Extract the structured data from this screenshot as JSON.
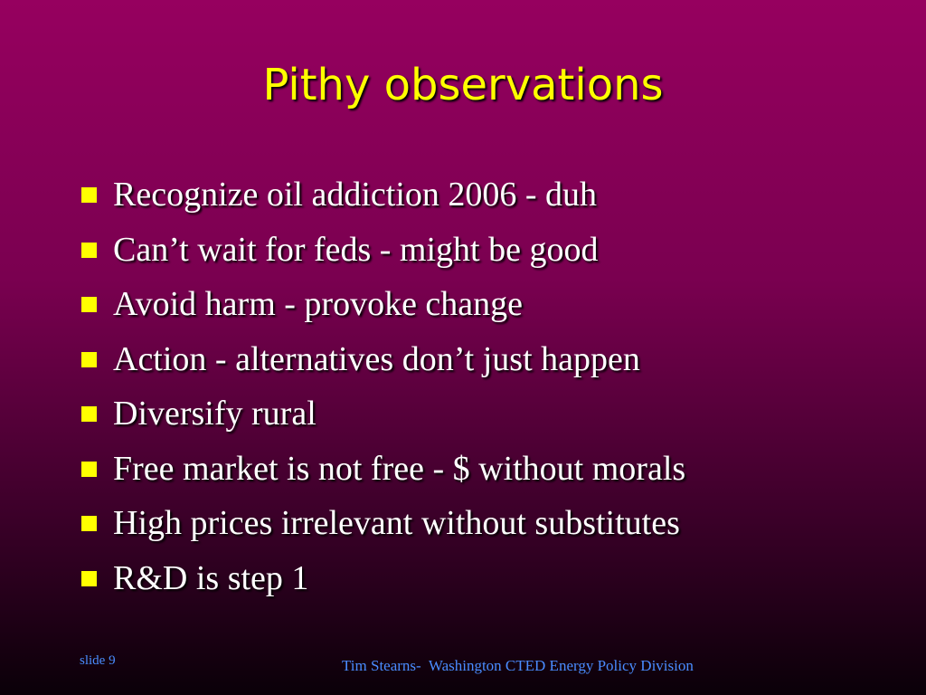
{
  "title": "Pithy observations",
  "bullets": [
    "Recognize oil addiction 2006 - duh",
    "Can’t wait for feds - might be good",
    "Avoid harm - provoke change",
    "Action - alternatives don’t just happen",
    "Diversify rural",
    "Free market is not free - $ without morals",
    "High prices irrelevant without substitutes",
    "R&D is step 1"
  ],
  "footer": {
    "slide": "slide 9",
    "credit": "Tim Stearns-  Washington CTED Energy Policy Division"
  }
}
